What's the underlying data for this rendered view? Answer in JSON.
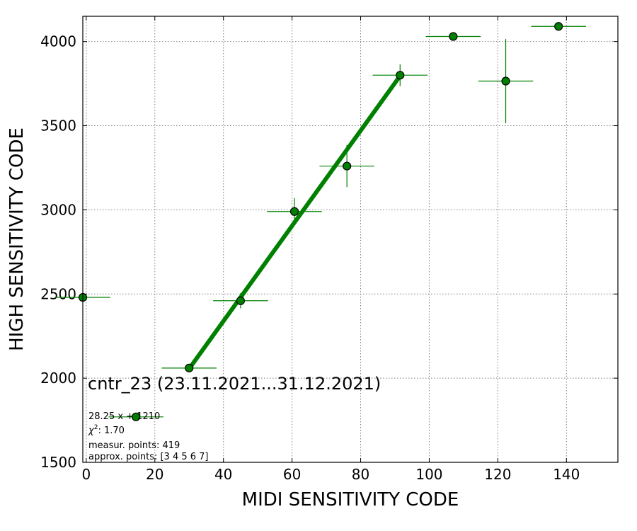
{
  "chart_data": {
    "type": "scatter",
    "xlabel": "MIDI SENSITIVITY CODE",
    "ylabel": "HIGH SENSITIVITY CODE",
    "xlim": [
      -1,
      155
    ],
    "ylim": [
      1500,
      4150
    ],
    "xticks": [
      0,
      20,
      40,
      60,
      80,
      100,
      120,
      140
    ],
    "yticks": [
      1500,
      2000,
      2500,
      3000,
      3500,
      4000
    ],
    "grid": true,
    "colors": {
      "points": "#008000",
      "fit_line": "#008000",
      "marker_edge": "#000000"
    },
    "series": [
      {
        "kind": "points_with_errorbars",
        "points": [
          {
            "x": -1,
            "y": 2480,
            "xerr": 8,
            "yerr": 0
          },
          {
            "x": 14.5,
            "y": 1770,
            "xerr": 8,
            "yerr": 0
          },
          {
            "x": 30,
            "y": 2060,
            "xerr": 8,
            "yerr": 0
          },
          {
            "x": 45,
            "y": 2460,
            "xerr": 8,
            "yerr": 45
          },
          {
            "x": 60.7,
            "y": 2990,
            "xerr": 8,
            "yerr": 80
          },
          {
            "x": 76,
            "y": 3260,
            "xerr": 8,
            "yerr": 125
          },
          {
            "x": 91.5,
            "y": 3800,
            "xerr": 8,
            "yerr": 65
          },
          {
            "x": 107,
            "y": 4030,
            "xerr": 8,
            "yerr": 0
          },
          {
            "x": 122.3,
            "y": 3765,
            "xerr": 8,
            "yerr": 250
          },
          {
            "x": 137.7,
            "y": 4090,
            "xerr": 8,
            "yerr": 0
          }
        ]
      },
      {
        "kind": "fit_line",
        "x": [
          30,
          91.5
        ],
        "y": [
          2056,
          3796
        ]
      }
    ],
    "annotations": {
      "title": "cntr_23 (23.11.2021...31.12.2021)",
      "equation": "28.25 x + 1210",
      "chi2_label": "χ",
      "chi2_sup": "2",
      "chi2_value": ": 1.70",
      "measur_points": "measur. points: 419",
      "approx_points": "approx. points: [3 4 5 6 7]"
    }
  }
}
